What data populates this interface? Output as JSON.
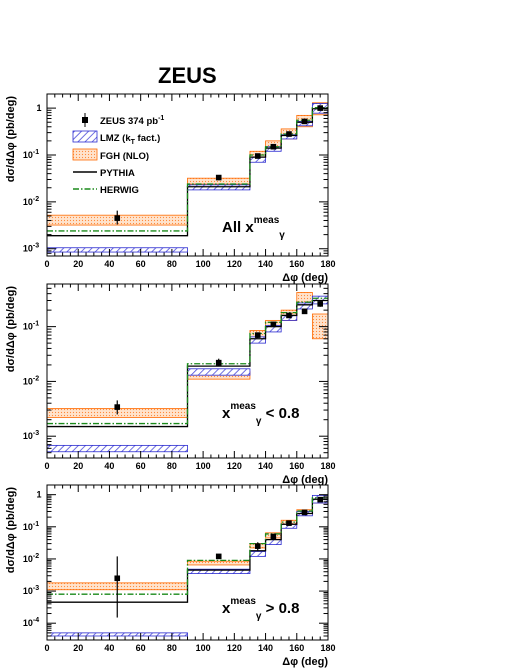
{
  "figure": {
    "title": "ZEUS",
    "legend": [
      {
        "key": "data",
        "label": "ZEUS 374 pb",
        "sup": "-1",
        "marker": "square"
      },
      {
        "key": "lmz",
        "label": "LMZ (k",
        "sub": "T",
        "suffix": " fact.)",
        "marker": "hatch-box"
      },
      {
        "key": "fgh",
        "label": "FGH (NLO)",
        "marker": "dotted-box"
      },
      {
        "key": "pythia",
        "label": "PYTHIA",
        "marker": "solid-line"
      },
      {
        "key": "herwig",
        "label": "HERWIG",
        "marker": "dashdot-line"
      }
    ],
    "colors": {
      "data": "#000000",
      "lmz_edge": "#2a2ad0",
      "lmz_fill": "#6a6ae0",
      "fgh_edge": "#ff6a00",
      "fgh_fill": "#ffc8a0",
      "pythia": "#000000",
      "herwig": "#1a8a1a"
    }
  },
  "chart_data": [
    {
      "type": "line",
      "name": "all",
      "xlabel": "Δφ (deg)",
      "ylabel": "dσ/dΔφ (pb/deg)",
      "xlim": [
        0,
        180
      ],
      "ylim": [
        0.0007,
        2
      ],
      "log_y": true,
      "annotation": {
        "x": "x",
        "sub": "γ",
        "sup": "meas",
        "prefix": "All ",
        "suffix": ""
      },
      "xticks": [
        0,
        20,
        40,
        60,
        80,
        100,
        120,
        140,
        160,
        180
      ],
      "yticks": [
        {
          "v": 0.001,
          "b": "10",
          "e": "-3"
        },
        {
          "v": 0.01,
          "b": "10",
          "e": "-2"
        },
        {
          "v": 0.1,
          "b": "10",
          "e": "-1"
        },
        {
          "v": 1,
          "b": "1",
          "e": ""
        }
      ],
      "bins": [
        [
          0,
          90
        ],
        [
          90,
          130
        ],
        [
          130,
          140
        ],
        [
          140,
          150
        ],
        [
          150,
          160
        ],
        [
          160,
          170
        ],
        [
          170,
          180
        ]
      ],
      "data": {
        "x": [
          45,
          110,
          135,
          145,
          155,
          165,
          175
        ],
        "y": [
          0.0045,
          0.033,
          0.095,
          0.15,
          0.28,
          0.52,
          1.0
        ],
        "err_lo": [
          0.0033,
          0.03,
          0.085,
          0.135,
          0.26,
          0.48,
          0.92
        ],
        "err_hi": [
          0.0065,
          0.036,
          0.105,
          0.165,
          0.3,
          0.56,
          1.08
        ]
      },
      "lmz": {
        "lo": [
          0.00085,
          0.018,
          0.07,
          0.12,
          0.22,
          0.42,
          0.78
        ],
        "hi": [
          0.00105,
          0.023,
          0.09,
          0.15,
          0.27,
          0.52,
          1.25
        ]
      },
      "fgh": {
        "lo": [
          0.0032,
          0.024,
          0.085,
          0.13,
          0.22,
          0.4,
          0.72
        ],
        "hi": [
          0.0052,
          0.032,
          0.12,
          0.2,
          0.36,
          0.7,
          1.3
        ]
      },
      "pythia": [
        0.0019,
        0.021,
        0.09,
        0.14,
        0.26,
        0.5,
        0.97
      ],
      "herwig": [
        0.0024,
        0.024,
        0.1,
        0.15,
        0.28,
        0.55,
        1.02
      ]
    },
    {
      "type": "line",
      "name": "low",
      "xlabel": "Δφ (deg)",
      "ylabel": "dσ/dΔφ (pb/deg)",
      "xlim": [
        0,
        180
      ],
      "ylim": [
        0.0004,
        0.6
      ],
      "log_y": true,
      "annotation": {
        "x": "x",
        "sub": "γ",
        "sup": "meas",
        "prefix": "",
        "suffix": " < 0.8"
      },
      "xticks": [
        0,
        20,
        40,
        60,
        80,
        100,
        120,
        140,
        160,
        180
      ],
      "yticks": [
        {
          "v": 0.001,
          "b": "10",
          "e": "-3"
        },
        {
          "v": 0.01,
          "b": "10",
          "e": "-2"
        },
        {
          "v": 0.1,
          "b": "10",
          "e": "-1"
        }
      ],
      "bins": [
        [
          0,
          90
        ],
        [
          90,
          130
        ],
        [
          130,
          140
        ],
        [
          140,
          150
        ],
        [
          150,
          160
        ],
        [
          160,
          170
        ],
        [
          170,
          180
        ]
      ],
      "data": {
        "x": [
          45,
          110,
          135,
          145,
          155,
          165,
          175
        ],
        "y": [
          0.0034,
          0.022,
          0.07,
          0.11,
          0.16,
          0.19,
          0.26
        ],
        "err_lo": [
          0.0025,
          0.019,
          0.062,
          0.1,
          0.145,
          0.17,
          0.23
        ],
        "err_hi": [
          0.0045,
          0.026,
          0.078,
          0.122,
          0.175,
          0.21,
          0.29
        ]
      },
      "lmz": {
        "lo": [
          0.00052,
          0.013,
          0.05,
          0.08,
          0.13,
          0.21,
          0.26
        ],
        "hi": [
          0.00068,
          0.017,
          0.065,
          0.105,
          0.16,
          0.27,
          0.36
        ]
      },
      "fgh": {
        "lo": [
          0.0022,
          0.011,
          0.06,
          0.09,
          0.13,
          0.22,
          0.06
        ],
        "hi": [
          0.0032,
          0.015,
          0.085,
          0.13,
          0.2,
          0.42,
          0.17
        ]
      },
      "pythia": [
        0.0015,
        0.019,
        0.06,
        0.1,
        0.16,
        0.25,
        0.3
      ],
      "herwig": [
        0.0017,
        0.021,
        0.075,
        0.12,
        0.18,
        0.28,
        0.33
      ]
    },
    {
      "type": "line",
      "name": "high",
      "xlabel": "Δφ (deg)",
      "ylabel": "dσ/dΔφ (pb/deg)",
      "xlim": [
        0,
        180
      ],
      "ylim": [
        3e-05,
        2
      ],
      "log_y": true,
      "annotation": {
        "x": "x",
        "sub": "γ",
        "sup": "meas",
        "prefix": "",
        "suffix": " > 0.8"
      },
      "xticks": [
        0,
        20,
        40,
        60,
        80,
        100,
        120,
        140,
        160,
        180
      ],
      "yticks": [
        {
          "v": 0.0001,
          "b": "10",
          "e": "-4"
        },
        {
          "v": 0.001,
          "b": "10",
          "e": "-3"
        },
        {
          "v": 0.01,
          "b": "10",
          "e": "-2"
        },
        {
          "v": 0.1,
          "b": "10",
          "e": "-1"
        },
        {
          "v": 1,
          "b": "1",
          "e": ""
        }
      ],
      "bins": [
        [
          0,
          90
        ],
        [
          90,
          130
        ],
        [
          130,
          140
        ],
        [
          140,
          150
        ],
        [
          150,
          160
        ],
        [
          160,
          170
        ],
        [
          170,
          180
        ]
      ],
      "data": {
        "x": [
          45,
          110,
          135,
          145,
          155,
          165,
          175
        ],
        "y": [
          0.0025,
          0.012,
          0.025,
          0.05,
          0.13,
          0.28,
          0.7
        ],
        "err_lo": [
          0.00015,
          0.01,
          0.018,
          0.042,
          0.115,
          0.25,
          0.6
        ],
        "err_hi": [
          0.012,
          0.014,
          0.033,
          0.058,
          0.15,
          0.32,
          0.8
        ]
      },
      "lmz": {
        "lo": [
          4e-05,
          0.0035,
          0.012,
          0.028,
          0.09,
          0.22,
          0.55
        ],
        "hi": [
          5e-05,
          0.0048,
          0.017,
          0.04,
          0.12,
          0.3,
          0.95
        ]
      },
      "fgh": {
        "lo": [
          0.0011,
          0.0065,
          0.022,
          0.045,
          0.11,
          0.24,
          0.55
        ],
        "hi": [
          0.0018,
          0.0085,
          0.03,
          0.065,
          0.16,
          0.34,
          0.85
        ]
      },
      "pythia": [
        0.00045,
        0.0045,
        0.018,
        0.04,
        0.12,
        0.26,
        0.72
      ],
      "herwig": [
        0.0008,
        0.009,
        0.03,
        0.06,
        0.14,
        0.31,
        0.8
      ]
    }
  ]
}
